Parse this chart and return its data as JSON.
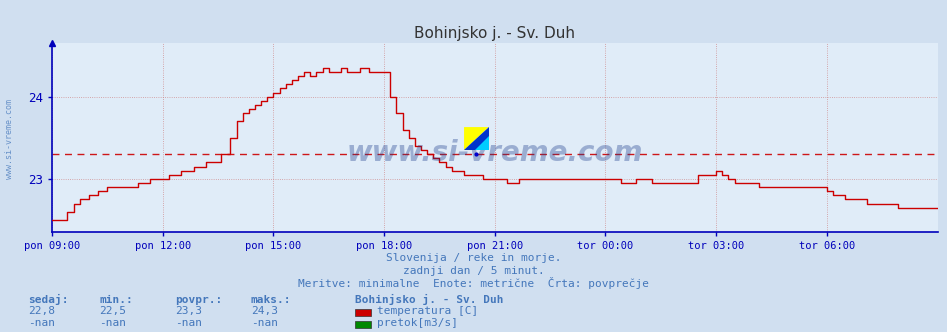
{
  "title": "Bohinjsko j. - Sv. Duh",
  "subtitle1": "Slovenija / reke in morje.",
  "subtitle2": "zadnji dan / 5 minut.",
  "subtitle3": "Meritve: minimalne  Enote: metrične  Črta: povprečje",
  "background_color": "#d0dff0",
  "plot_bg_color": "#e0ecf8",
  "line_color": "#cc0000",
  "axis_color": "#0000bb",
  "text_color": "#4477bb",
  "title_color": "#333333",
  "ylim": [
    22.35,
    24.65
  ],
  "yticks": [
    23.0,
    24.0
  ],
  "xstart": 0,
  "xend": 288,
  "avg_value": 23.3,
  "xtick_labels": [
    "pon 09:00",
    "pon 12:00",
    "pon 15:00",
    "pon 18:00",
    "pon 21:00",
    "tor 00:00",
    "tor 03:00",
    "tor 06:00"
  ],
  "xtick_positions": [
    0,
    36,
    72,
    108,
    144,
    180,
    216,
    252
  ],
  "legend_station": "Bohinjsko j. - Sv. Duh",
  "legend_items": [
    {
      "label": "temperatura [C]",
      "color": "#cc0000"
    },
    {
      "label": "pretok[m3/s]",
      "color": "#008800"
    }
  ],
  "table_headers": [
    "sedaj:",
    "min.:",
    "povpr.:",
    "maks.:"
  ],
  "table_row1": [
    "22,8",
    "22,5",
    "23,3",
    "24,3"
  ],
  "table_row2": [
    "-nan",
    "-nan",
    "-nan",
    "-nan"
  ],
  "marker_x": 134,
  "marker_y": 23.35
}
